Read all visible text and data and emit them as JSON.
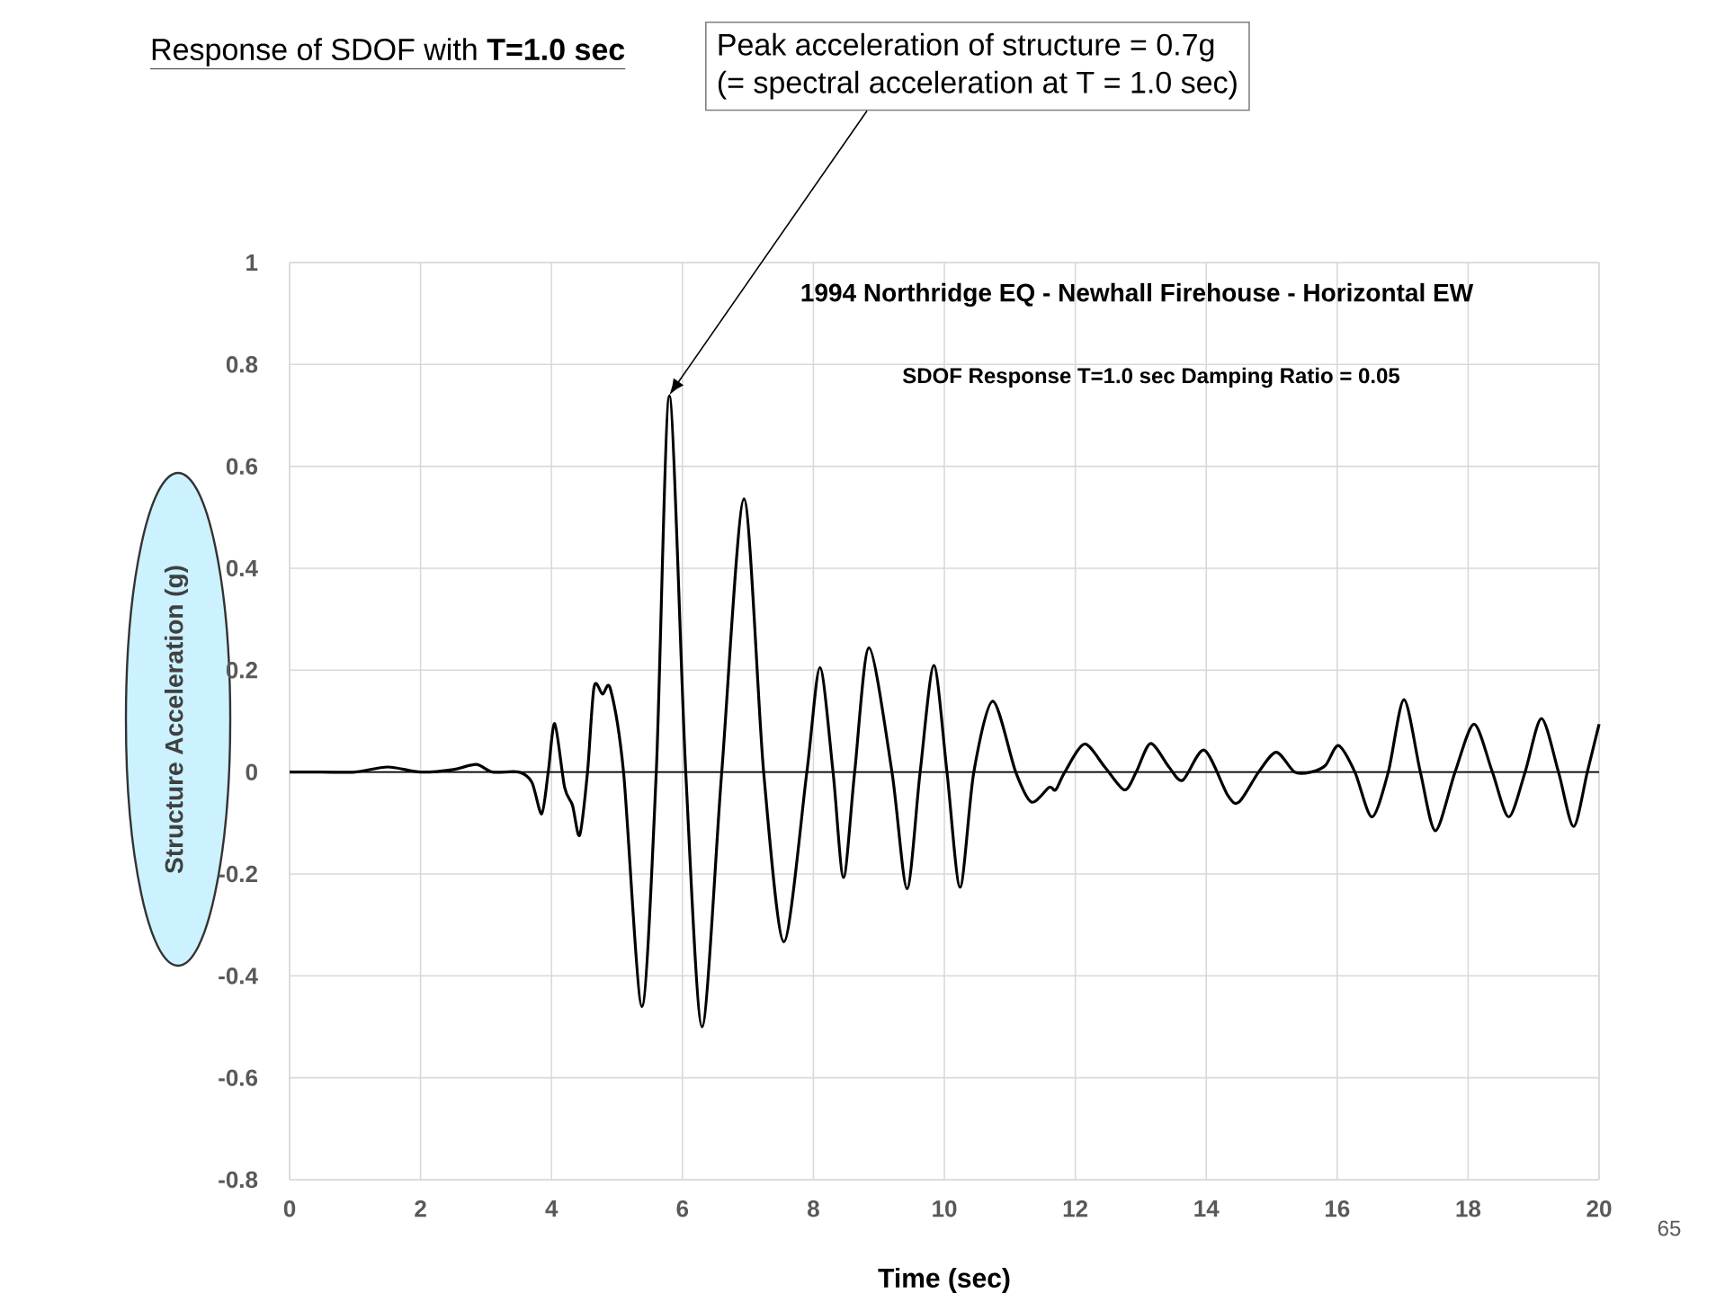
{
  "chart_data": {
    "type": "line",
    "title": "Response of SDOF with **T=1.0 sec**",
    "subtitle": "1994 Northridge EQ - Newhall Firehouse - Horizontal EW",
    "xlabel": "Time (sec)",
    "ylabel": "Structure Acceleration (g)",
    "annotations": [
      "Peak acceleration of structure = 0.7g",
      {
        "text": "(= spectral acceleration at T = 1.0 sec)",
        "x": 5.8,
        "y": 0.74
      },
      "SDOF Response T=1.0 sec Damping Ratio = 0.05",
      "65"
    ],
    "x": [
      0,
      0.5,
      1,
      1.5,
      2,
      2.5,
      2.85,
      3.1,
      3.5,
      3.7,
      3.85,
      3.95,
      4.05,
      4.2,
      4.32,
      4.43,
      4.55,
      4.65,
      4.78,
      4.9,
      5.1,
      5.38,
      5.6,
      5.8,
      6.05,
      6.3,
      6.6,
      6.94,
      7.24,
      7.55,
      7.9,
      8.1,
      8.3,
      8.46,
      8.63,
      8.85,
      9.2,
      9.43,
      9.63,
      9.84,
      10.04,
      10.24,
      10.45,
      10.74,
      11.09,
      11.33,
      11.6,
      11.7,
      11.84,
      12.14,
      12.45,
      12.75,
      12.93,
      13.15,
      13.43,
      13.64,
      13.97,
      14.33,
      14.5,
      14.8,
      15.07,
      15.35,
      15.6,
      15.82,
      16.02,
      16.27,
      16.53,
      16.78,
      17.02,
      17.27,
      17.5,
      17.8,
      18.09,
      18.37,
      18.62,
      18.87,
      19.12,
      19.38,
      19.61,
      19.82,
      20
    ],
    "values": [
      0,
      0,
      0,
      0.01,
      0,
      0.005,
      0.015,
      0,
      0,
      -0.02,
      -0.082,
      0,
      0.095,
      -0.03,
      -0.065,
      -0.124,
      0,
      0.167,
      0.153,
      0.163,
      0,
      -0.46,
      0,
      0.738,
      0,
      -0.5,
      0,
      0.536,
      0,
      -0.333,
      0,
      0.205,
      0,
      -0.207,
      0,
      0.244,
      0,
      -0.229,
      0,
      0.209,
      0,
      -0.226,
      0,
      0.139,
      0,
      -0.059,
      -0.03,
      -0.035,
      0,
      0.055,
      0.01,
      -0.035,
      0,
      0.056,
      0.01,
      -0.016,
      0.043,
      -0.046,
      -0.059,
      0,
      0.039,
      0,
      0,
      0.013,
      0.052,
      0,
      -0.088,
      0,
      0.142,
      0,
      -0.115,
      0,
      0.094,
      0,
      -0.088,
      0,
      0.105,
      0,
      -0.107,
      0,
      0.094
    ],
    "color": "#000000",
    "xlim": [
      0,
      20
    ],
    "ylim": [
      -0.8,
      1
    ],
    "xticks": [
      0,
      2,
      4,
      6,
      8,
      10,
      12,
      14,
      16,
      18,
      20
    ],
    "yticks": [
      -0.8,
      -0.6,
      -0.4,
      -0.2,
      0,
      0.2,
      0.4,
      0.6,
      0.8,
      1
    ],
    "grid": true
  }
}
